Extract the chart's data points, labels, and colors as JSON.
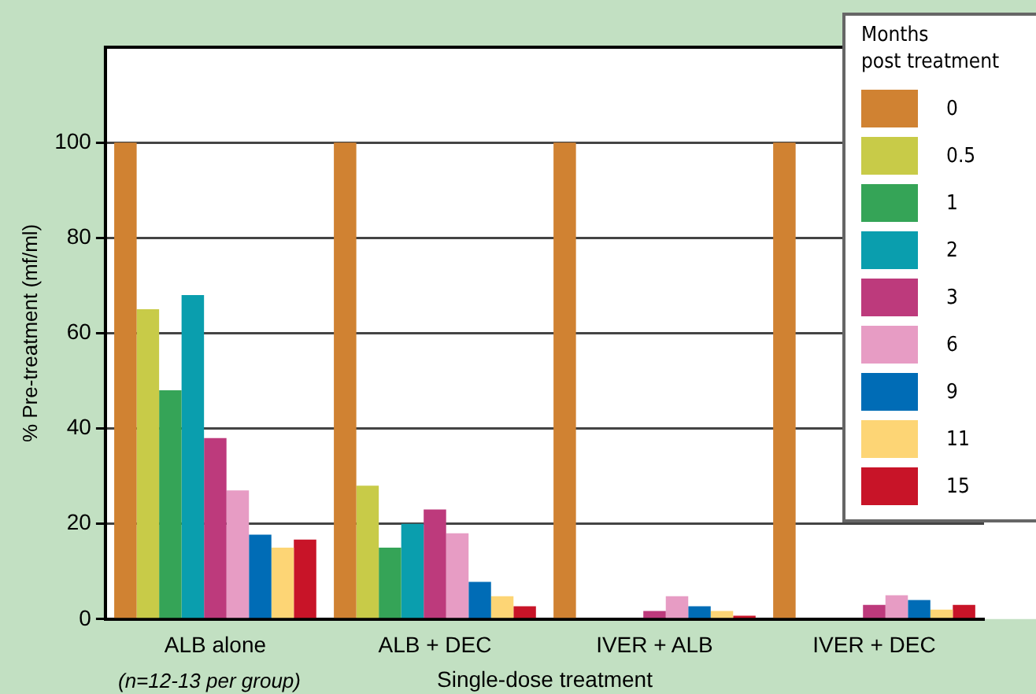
{
  "chart_data": {
    "type": "bar",
    "xlabel": "Single-dose treatment",
    "ylabel": "% Pre-treatment (mf/ml)",
    "legend_title": "Months\npost treatment",
    "annotations": [
      "(n=12-13 per group)"
    ],
    "categories": [
      "ALB alone",
      "ALB + DEC",
      "IVER + ALB",
      "IVER + DEC"
    ],
    "series": [
      {
        "name": "0",
        "color": "#d08232",
        "values": [
          100,
          100,
          100,
          100
        ]
      },
      {
        "name": "0.5",
        "color": "#c8cb48",
        "values": [
          65,
          28,
          0,
          0
        ]
      },
      {
        "name": "1",
        "color": "#35a457",
        "values": [
          48,
          15,
          0,
          0
        ]
      },
      {
        "name": "2",
        "color": "#0a9eae",
        "values": [
          68,
          20,
          0,
          0
        ]
      },
      {
        "name": "3",
        "color": "#bd3a7c",
        "values": [
          38,
          23,
          1.7,
          3
        ]
      },
      {
        "name": "6",
        "color": "#e79cc4",
        "values": [
          27,
          18,
          4.8,
          5
        ]
      },
      {
        "name": "9",
        "color": "#006cb6",
        "values": [
          17.7,
          7.8,
          2.7,
          4
        ]
      },
      {
        "name": "11",
        "color": "#fdd575",
        "values": [
          15,
          4.8,
          1.7,
          2
        ]
      },
      {
        "name": "15",
        "color": "#c81428",
        "values": [
          16.7,
          2.7,
          0.7,
          3
        ]
      }
    ],
    "ylim": [
      0,
      120
    ],
    "yticks": [
      0,
      20,
      40,
      60,
      80,
      100
    ],
    "grid": "y",
    "legend": "top right"
  }
}
